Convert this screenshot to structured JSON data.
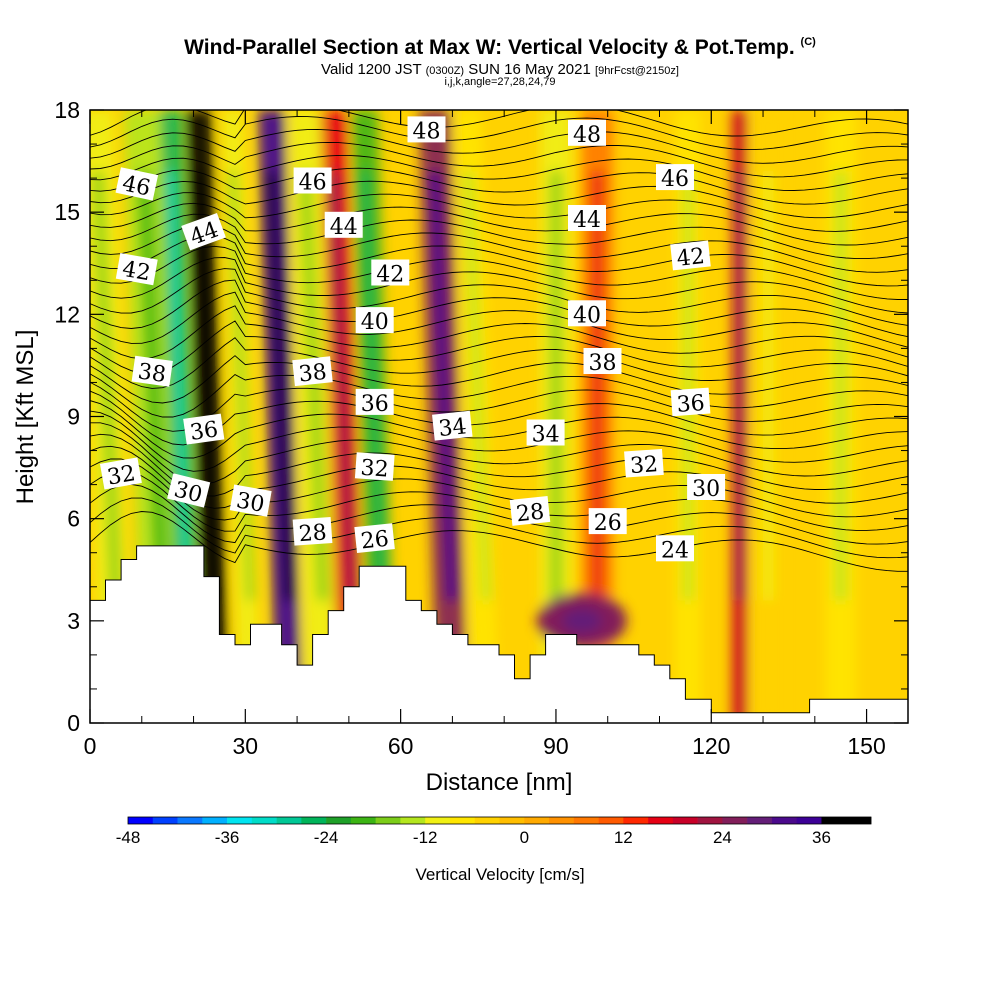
{
  "header": {
    "title": "Wind-Parallel Section at Max W: Vertical Velocity & Pot.Temp.",
    "title_tag": "(C)",
    "valid_prefix": "Valid 1200 JST",
    "valid_utc": "(0300Z)",
    "valid_date": "SUN 16 May 2021",
    "forecast": "[9hrFcst@2150z]",
    "indices": "i,j,k,angle=27,28,24,79"
  },
  "chart_data": {
    "type": "heatmap",
    "xlabel": "Distance [nm]",
    "ylabel": "Height [Kft MSL]",
    "xlim": [
      0,
      158
    ],
    "ylim": [
      0,
      18
    ],
    "xticks": [
      0,
      30,
      60,
      90,
      120,
      150
    ],
    "yticks": [
      0,
      3,
      6,
      9,
      12,
      15,
      18
    ],
    "colorbar": {
      "title": "Vertical Velocity [cm/s]",
      "min": -48,
      "max": 42,
      "step": 3,
      "tick_values": [
        -48,
        -36,
        -24,
        -12,
        0,
        12,
        24,
        36
      ],
      "colors": [
        "#0000ff",
        "#0040ff",
        "#0a78ff",
        "#00b0ff",
        "#00e4f0",
        "#00dcc8",
        "#00c896",
        "#00b45a",
        "#1ea028",
        "#3cb414",
        "#7ccd19",
        "#b4e61e",
        "#f0f014",
        "#ffe600",
        "#ffd200",
        "#ffbe00",
        "#ffaa00",
        "#ff9100",
        "#ff7800",
        "#ff5a00",
        "#ff2800",
        "#e60014",
        "#c80028",
        "#a01440",
        "#821e5a",
        "#641e78",
        "#4b0a8c",
        "#3c0096",
        "#000000",
        "#000000"
      ]
    },
    "velocity_bands": [
      {
        "x": 2,
        "w": 6,
        "v": -12
      },
      {
        "x": 10,
        "w": 8,
        "v": -14
      },
      {
        "x": 17,
        "w": 4,
        "v": -26
      },
      {
        "x": 22,
        "w": 5,
        "v": 40
      },
      {
        "x": 29,
        "w": 4,
        "v": -10
      },
      {
        "x": 36,
        "w": 5,
        "v": 34
      },
      {
        "x": 42,
        "w": 6,
        "v": -12
      },
      {
        "x": 48,
        "w": 5,
        "v": 16
      },
      {
        "x": 54,
        "w": 5,
        "v": -20
      },
      {
        "x": 67,
        "w": 6,
        "v": 24
      },
      {
        "x": 74,
        "w": 5,
        "v": -8
      },
      {
        "x": 87,
        "w": 6,
        "v": -10
      },
      {
        "x": 95,
        "w": 6,
        "v": 8
      },
      {
        "x": 113,
        "w": 5,
        "v": -8
      },
      {
        "x": 124,
        "w": 3,
        "v": 18
      },
      {
        "x": 142,
        "w": 6,
        "v": -8
      },
      {
        "x": 128,
        "w": 6,
        "v": -6
      }
    ],
    "updraft_blob": {
      "x": 95,
      "y": 3,
      "v": 26
    },
    "theta_labels": [
      {
        "text": "46",
        "x": 9,
        "y": 15.8,
        "rot": 12
      },
      {
        "text": "44",
        "x": 22,
        "y": 14.4,
        "rot": -20
      },
      {
        "text": "42",
        "x": 9,
        "y": 13.3,
        "rot": 10
      },
      {
        "text": "38",
        "x": 12,
        "y": 10.3,
        "rot": 8
      },
      {
        "text": "36",
        "x": 22,
        "y": 8.6,
        "rot": -8
      },
      {
        "text": "32",
        "x": 6,
        "y": 7.3,
        "rot": -10
      },
      {
        "text": "30",
        "x": 19,
        "y": 6.8,
        "rot": 14
      },
      {
        "text": "30",
        "x": 31,
        "y": 6.5,
        "rot": 10
      },
      {
        "text": "28",
        "x": 43,
        "y": 5.6,
        "rot": -4
      },
      {
        "text": "26",
        "x": 55,
        "y": 5.4,
        "rot": -6
      },
      {
        "text": "46",
        "x": 43,
        "y": 15.9,
        "rot": 0
      },
      {
        "text": "44",
        "x": 49,
        "y": 14.6,
        "rot": 0
      },
      {
        "text": "42",
        "x": 58,
        "y": 13.2,
        "rot": 0
      },
      {
        "text": "40",
        "x": 55,
        "y": 11.8,
        "rot": 0
      },
      {
        "text": "38",
        "x": 43,
        "y": 10.3,
        "rot": -6
      },
      {
        "text": "36",
        "x": 55,
        "y": 9.4,
        "rot": 0
      },
      {
        "text": "32",
        "x": 55,
        "y": 7.5,
        "rot": 4
      },
      {
        "text": "48",
        "x": 65,
        "y": 17.4,
        "rot": 0
      },
      {
        "text": "34",
        "x": 70,
        "y": 8.7,
        "rot": -6
      },
      {
        "text": "48",
        "x": 96,
        "y": 17.3,
        "rot": 0
      },
      {
        "text": "44",
        "x": 96,
        "y": 14.8,
        "rot": 0
      },
      {
        "text": "40",
        "x": 96,
        "y": 12.0,
        "rot": 0
      },
      {
        "text": "38",
        "x": 99,
        "y": 10.6,
        "rot": 0
      },
      {
        "text": "34",
        "x": 88,
        "y": 8.5,
        "rot": 0
      },
      {
        "text": "28",
        "x": 85,
        "y": 6.2,
        "rot": -6
      },
      {
        "text": "26",
        "x": 100,
        "y": 5.9,
        "rot": 0
      },
      {
        "text": "46",
        "x": 113,
        "y": 16.0,
        "rot": 0
      },
      {
        "text": "42",
        "x": 116,
        "y": 13.7,
        "rot": -6
      },
      {
        "text": "36",
        "x": 116,
        "y": 9.4,
        "rot": -4
      },
      {
        "text": "32",
        "x": 107,
        "y": 7.6,
        "rot": -4
      },
      {
        "text": "30",
        "x": 119,
        "y": 6.9,
        "rot": 0
      },
      {
        "text": "24",
        "x": 113,
        "y": 5.1,
        "rot": 0
      }
    ],
    "terrain": [
      [
        0,
        3.6
      ],
      [
        3,
        3.6
      ],
      [
        3,
        4.2
      ],
      [
        6,
        4.2
      ],
      [
        6,
        4.8
      ],
      [
        9,
        4.8
      ],
      [
        9,
        5.2
      ],
      [
        17,
        5.2
      ],
      [
        22,
        5.2
      ],
      [
        22,
        4.3
      ],
      [
        25,
        4.3
      ],
      [
        25,
        2.6
      ],
      [
        28,
        2.6
      ],
      [
        28,
        2.3
      ],
      [
        31,
        2.3
      ],
      [
        31,
        2.9
      ],
      [
        37,
        2.9
      ],
      [
        37,
        2.3
      ],
      [
        40,
        2.3
      ],
      [
        40,
        1.7
      ],
      [
        43,
        1.7
      ],
      [
        43,
        2.6
      ],
      [
        46,
        2.6
      ],
      [
        46,
        3.3
      ],
      [
        49,
        3.3
      ],
      [
        49,
        4.0
      ],
      [
        52,
        4.0
      ],
      [
        52,
        4.6
      ],
      [
        61,
        4.6
      ],
      [
        61,
        3.6
      ],
      [
        64,
        3.6
      ],
      [
        64,
        3.3
      ],
      [
        67,
        3.3
      ],
      [
        67,
        2.9
      ],
      [
        70,
        2.9
      ],
      [
        70,
        2.6
      ],
      [
        73,
        2.6
      ],
      [
        73,
        2.3
      ],
      [
        79,
        2.3
      ],
      [
        79,
        2.0
      ],
      [
        82,
        2.0
      ],
      [
        82,
        1.3
      ],
      [
        85,
        1.3
      ],
      [
        85,
        2.0
      ],
      [
        88,
        2.0
      ],
      [
        88,
        2.6
      ],
      [
        94,
        2.6
      ],
      [
        94,
        2.3
      ],
      [
        106,
        2.3
      ],
      [
        106,
        2.0
      ],
      [
        109,
        2.0
      ],
      [
        109,
        1.7
      ],
      [
        112,
        1.7
      ],
      [
        112,
        1.3
      ],
      [
        115,
        1.3
      ],
      [
        115,
        0.7
      ],
      [
        120,
        0.7
      ],
      [
        120,
        0.3
      ],
      [
        139,
        0.3
      ],
      [
        139,
        0.7
      ],
      [
        158,
        0.7
      ],
      [
        158,
        0
      ],
      [
        0,
        0
      ]
    ]
  }
}
